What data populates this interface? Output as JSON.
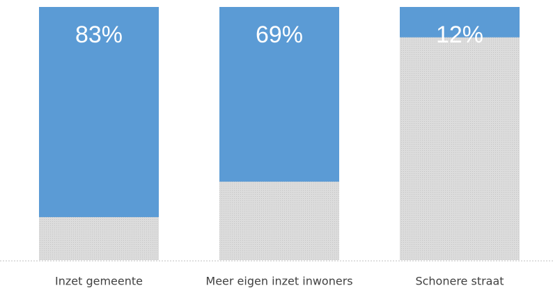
{
  "chart_data": {
    "type": "bar",
    "categories": [
      "Inzet gemeente",
      "Meer eigen inzet inwoners",
      "Schonere straat"
    ],
    "values": [
      83,
      69,
      12
    ],
    "value_labels": [
      "83%",
      "69%",
      "12%"
    ],
    "color": "#5b9bd5",
    "ylim": [
      0,
      100
    ]
  }
}
